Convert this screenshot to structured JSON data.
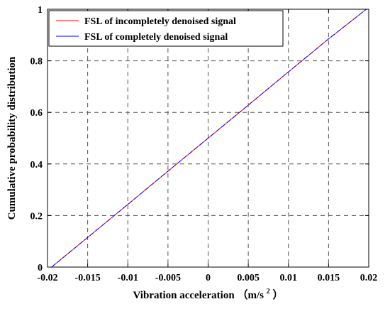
{
  "chart_data": {
    "type": "line",
    "title": "",
    "xlabel": "Vibration acceleration",
    "xlabel_unit": "（m/s",
    "xlabel_unit_sup": "2",
    "xlabel_unit_close": "）",
    "ylabel": "Cumulative probability distribution",
    "xlim": [
      -0.02,
      0.02
    ],
    "ylim": [
      0,
      1
    ],
    "xticks": [
      -0.02,
      -0.015,
      -0.01,
      -0.005,
      0,
      0.005,
      0.01,
      0.015,
      0.02
    ],
    "xtick_labels": [
      "-0.02",
      "-0.015",
      "-0.01",
      "-0.005",
      "0",
      "0.005",
      "0.01",
      "0.015",
      "0.02"
    ],
    "yticks": [
      0,
      0.2,
      0.4,
      0.6,
      0.8,
      1
    ],
    "ytick_labels": [
      "0",
      "0.2",
      "0.4",
      "0.6",
      "0.8",
      "1"
    ],
    "grid": true,
    "legend_position": "top-left",
    "series": [
      {
        "name": "FSL of incompletely denoised signal",
        "color": "#ff0000",
        "x": [
          -0.0195,
          -0.015,
          -0.01,
          -0.005,
          0,
          0.005,
          0.01,
          0.015,
          0.0197
        ],
        "y": [
          0,
          0.115,
          0.243,
          0.372,
          0.5,
          0.628,
          0.757,
          0.885,
          1
        ]
      },
      {
        "name": "FSL of completely denoised signal",
        "color": "#0000ff",
        "x": [
          -0.0195,
          -0.015,
          -0.01,
          -0.005,
          0,
          0.005,
          0.01,
          0.015,
          0.0197
        ],
        "y": [
          0,
          0.115,
          0.243,
          0.372,
          0.5,
          0.628,
          0.757,
          0.885,
          1
        ]
      }
    ]
  }
}
